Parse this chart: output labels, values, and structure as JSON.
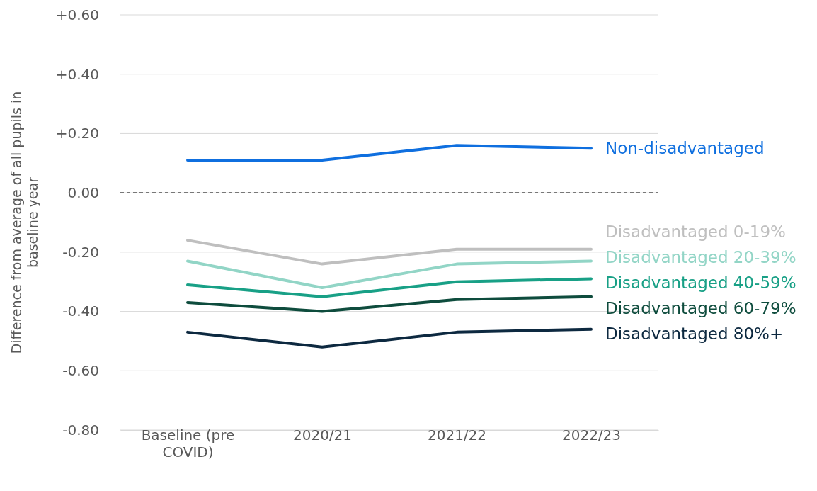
{
  "chart_data": {
    "type": "line",
    "ylabel": "Difference from average of all pupils in baseline year",
    "categories": [
      "Baseline (pre COVID)",
      "2020/21",
      "2021/22",
      "2022/23"
    ],
    "series": [
      {
        "name": "Non-disadvantaged",
        "color": "#0f6fdf",
        "values": [
          0.11,
          0.11,
          0.16,
          0.15
        ]
      },
      {
        "name": "Disadvantaged 0-19%",
        "color": "#bfbfbf",
        "values": [
          -0.16,
          -0.24,
          -0.19,
          -0.19
        ]
      },
      {
        "name": "Disadvantaged 20-39%",
        "color": "#92d5c6",
        "values": [
          -0.23,
          -0.32,
          -0.24,
          -0.23
        ]
      },
      {
        "name": "Disadvantaged 40-59%",
        "color": "#18a086",
        "values": [
          -0.31,
          -0.35,
          -0.3,
          -0.29
        ]
      },
      {
        "name": "Disadvantaged 60-79%",
        "color": "#0e4c3d",
        "values": [
          -0.37,
          -0.4,
          -0.36,
          -0.35
        ]
      },
      {
        "name": "Disadvantaged 80%+",
        "color": "#0d2940",
        "values": [
          -0.47,
          -0.52,
          -0.47,
          -0.46
        ]
      }
    ],
    "ylim": [
      -0.8,
      0.6
    ],
    "yticks": [
      {
        "value": 0.6,
        "label": "+0.60"
      },
      {
        "value": 0.4,
        "label": "+0.40"
      },
      {
        "value": 0.2,
        "label": "+0.20"
      },
      {
        "value": 0,
        "label": "0.00"
      },
      {
        "value": -0.2,
        "label": "-0.20"
      },
      {
        "value": -0.4,
        "label": "-0.40"
      },
      {
        "value": -0.6,
        "label": "-0.60"
      },
      {
        "value": -0.8,
        "label": "-0.80"
      }
    ],
    "grid": "y",
    "legend": false,
    "marker": "none",
    "line_style": "solid",
    "ref_lines": [
      {
        "axis": "y",
        "value": 0,
        "color": "#000000",
        "line_style": "dashed"
      }
    ]
  }
}
